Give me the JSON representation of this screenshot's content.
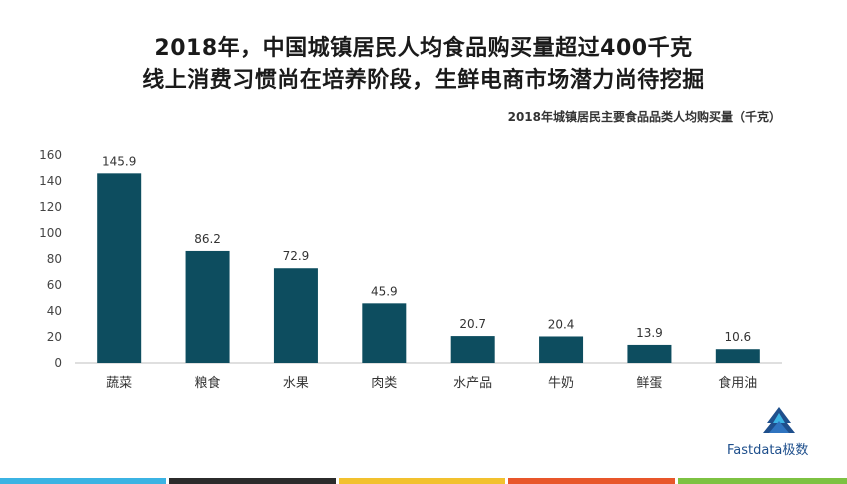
{
  "title_line1": "2018年，中国城镇居民人均食品购买量超过400千克",
  "title_line2": "线上消费习惯尚在培养阶段，生鲜电商市场潜力尚待挖掘",
  "brand": "Fastdata极数",
  "colors": {
    "bar": "#0d4d5f",
    "axis": "#bfbfbf",
    "footer": [
      "#3bb3e3",
      "#2b2b2b",
      "#f2c12e",
      "#e8562a",
      "#7dc242"
    ]
  },
  "chart_data": {
    "type": "bar",
    "title": "2018年城镇居民主要食品品类人均购买量（千克）",
    "categories": [
      "蔬菜",
      "粮食",
      "水果",
      "肉类",
      "水产品",
      "牛奶",
      "鲜蛋",
      "食用油"
    ],
    "values": [
      145.9,
      86.2,
      72.9,
      45.9,
      20.7,
      20.4,
      13.9,
      10.6
    ],
    "value_labels": [
      "145.9",
      "86.2",
      "72.9",
      "45.9",
      "20.7",
      "20.4",
      "13.9",
      "10.6"
    ],
    "yticks": [
      "0",
      "20",
      "40",
      "60",
      "80",
      "100",
      "120",
      "140",
      "160"
    ],
    "ylim": [
      0,
      160
    ],
    "xlabel": "",
    "ylabel": "",
    "grid": false,
    "legend": "none"
  }
}
